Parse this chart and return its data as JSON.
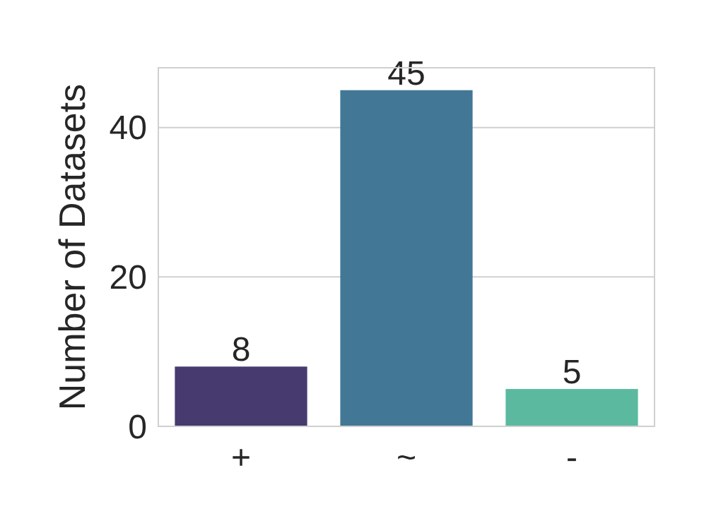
{
  "chart_data": {
    "type": "bar",
    "ylabel": "Number of Datasets",
    "categories": [
      "+",
      "~",
      "-"
    ],
    "values": [
      8,
      45,
      5
    ],
    "colors": [
      "#463a6e",
      "#427796",
      "#5bb9a0"
    ],
    "ylim": [
      0,
      48
    ],
    "yticks": [
      0,
      20,
      40
    ],
    "grid": "y",
    "data_labels": true
  }
}
